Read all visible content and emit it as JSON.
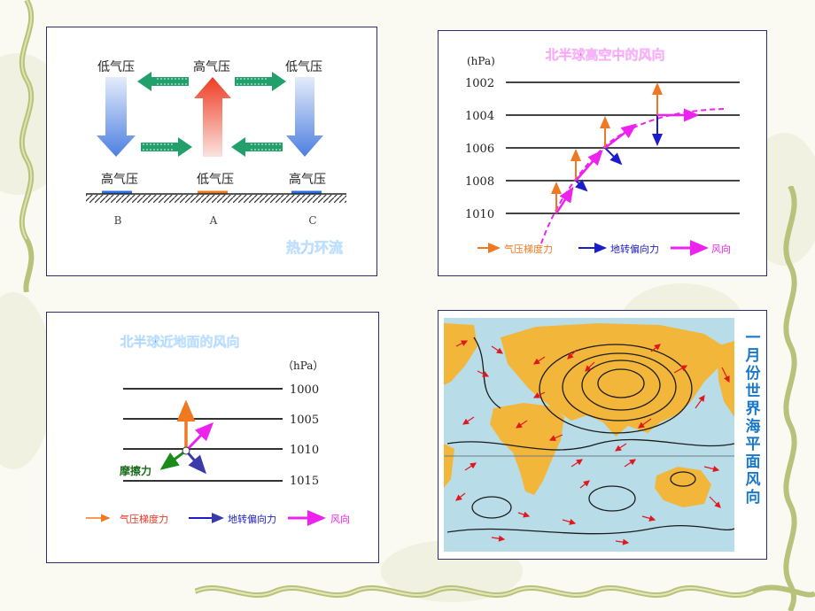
{
  "panel_thermal": {
    "top_left": "低气压",
    "top_center": "高气压",
    "top_right": "低气压",
    "bottom_left": "高气压",
    "bottom_center": "低气压",
    "bottom_right": "高气压",
    "label_b": "B",
    "label_a": "A",
    "label_c": "C",
    "caption": "热力环流"
  },
  "panel_upper": {
    "title": "北半球高空中的风向",
    "unit": "(hPa)",
    "levels": [
      "1002",
      "1004",
      "1006",
      "1008",
      "1010"
    ],
    "legend": {
      "pressure_gradient": "气压梯度力",
      "coriolis": "地转偏向力",
      "wind": "风向"
    }
  },
  "panel_surface": {
    "title": "北半球近地面的风向",
    "unit": "（hPa）",
    "levels": [
      "1000",
      "1005",
      "1010",
      "1015"
    ],
    "friction_label": "摩擦力",
    "legend": {
      "pressure_gradient": "气压梯度力",
      "coriolis": "地转偏向力",
      "wind": "风向"
    }
  },
  "panel_map": {
    "side_title": "一月份世界海平面风向"
  },
  "colors": {
    "pressure_gradient": "#f07820",
    "coriolis": "#1c1ccc",
    "wind": "#ee22ee",
    "friction": "#1a8a1a",
    "title_blue": "#1a78c8",
    "border": "#2c2c6e"
  }
}
